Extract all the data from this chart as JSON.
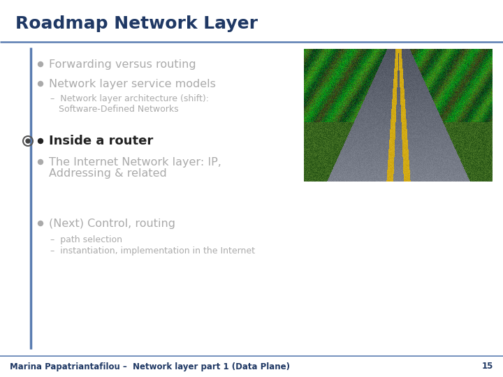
{
  "title": "Roadmap Network Layer",
  "title_color": "#1f3864",
  "title_fontsize": 18,
  "bg_color": "#ffffff",
  "header_line_color": "#5b7db1",
  "footer_line_color": "#5b7db1",
  "sidebar_color": "#5b7db1",
  "gray": "#aaaaaa",
  "black": "#222222",
  "footer_text": "Marina Papatriantafilou –  Network layer part 1 (Data Plane)",
  "page_number": "15",
  "footer_color": "#1f3864",
  "footer_fontsize": 8.5
}
